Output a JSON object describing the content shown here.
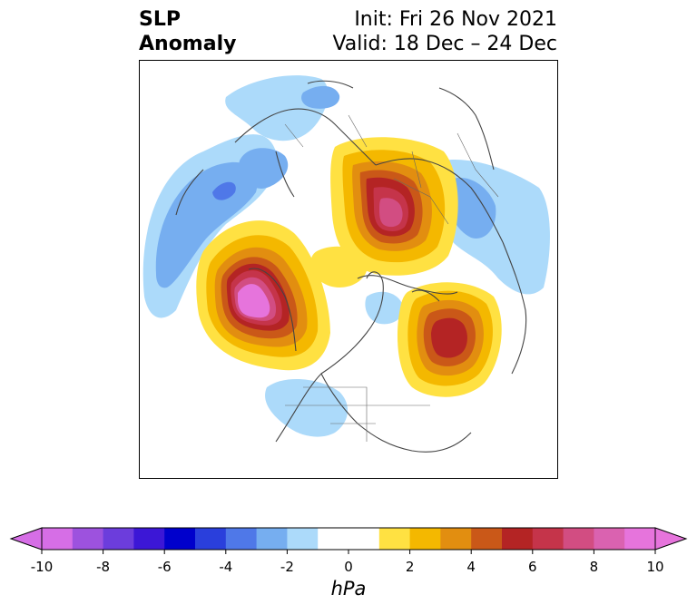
{
  "title": {
    "left_line1": "SLP",
    "left_line2": "Anomaly",
    "right_line1": "Init: Fri 26 Nov 2021",
    "right_line2": "Valid: 18 Dec – 24 Dec"
  },
  "colorbar": {
    "unit": "hPa",
    "tick_labels": [
      "-10",
      "-8",
      "-6",
      "-4",
      "-2",
      "0",
      "2",
      "4",
      "6",
      "8",
      "10"
    ],
    "colors": [
      "#d66ee6",
      "#9d52de",
      "#6c3ddc",
      "#3c17d6",
      "#0000cc",
      "#2a3fdc",
      "#4f78e8",
      "#76aef0",
      "#acdafa",
      "#ffffff",
      "#ffffff",
      "#ffe142",
      "#f4b800",
      "#e28e10",
      "#ca5818",
      "#b42424",
      "#c5344a",
      "#d24d82",
      "#da62b0",
      "#e674dc"
    ],
    "extend_min_color": "#d66ee6",
    "extend_max_color": "#e674dc"
  }
}
